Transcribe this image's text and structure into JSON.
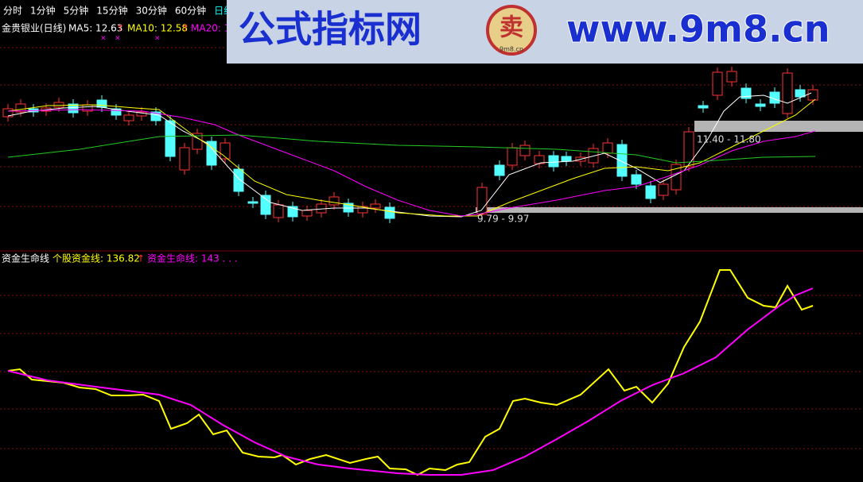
{
  "tabs": [
    "分时",
    "1分钟",
    "5分钟",
    "15分钟",
    "30分钟",
    "60分钟",
    "日线"
  ],
  "price_panel": {
    "stock": "金贵银业(日线)",
    "ma5": "MA5: 12.63",
    "ma10": "MA10: 12.58",
    "ma20": "MA20: 1",
    "arrow": "↑",
    "cross": "×",
    "band_upper": "11.40 - 11.80",
    "band_lower": "9.79 - 9.97"
  },
  "indicator_panel": {
    "name": "资金生命线",
    "stock_line": "个股资金线: 136.82",
    "life_line": "资金生命线: 143 . . .",
    "arrow": "↑"
  },
  "banner": {
    "title": "公式指标网",
    "url": "www.9m8.cn",
    "logo_text": "卖",
    "logo_sub": "9m8.cn"
  }
}
